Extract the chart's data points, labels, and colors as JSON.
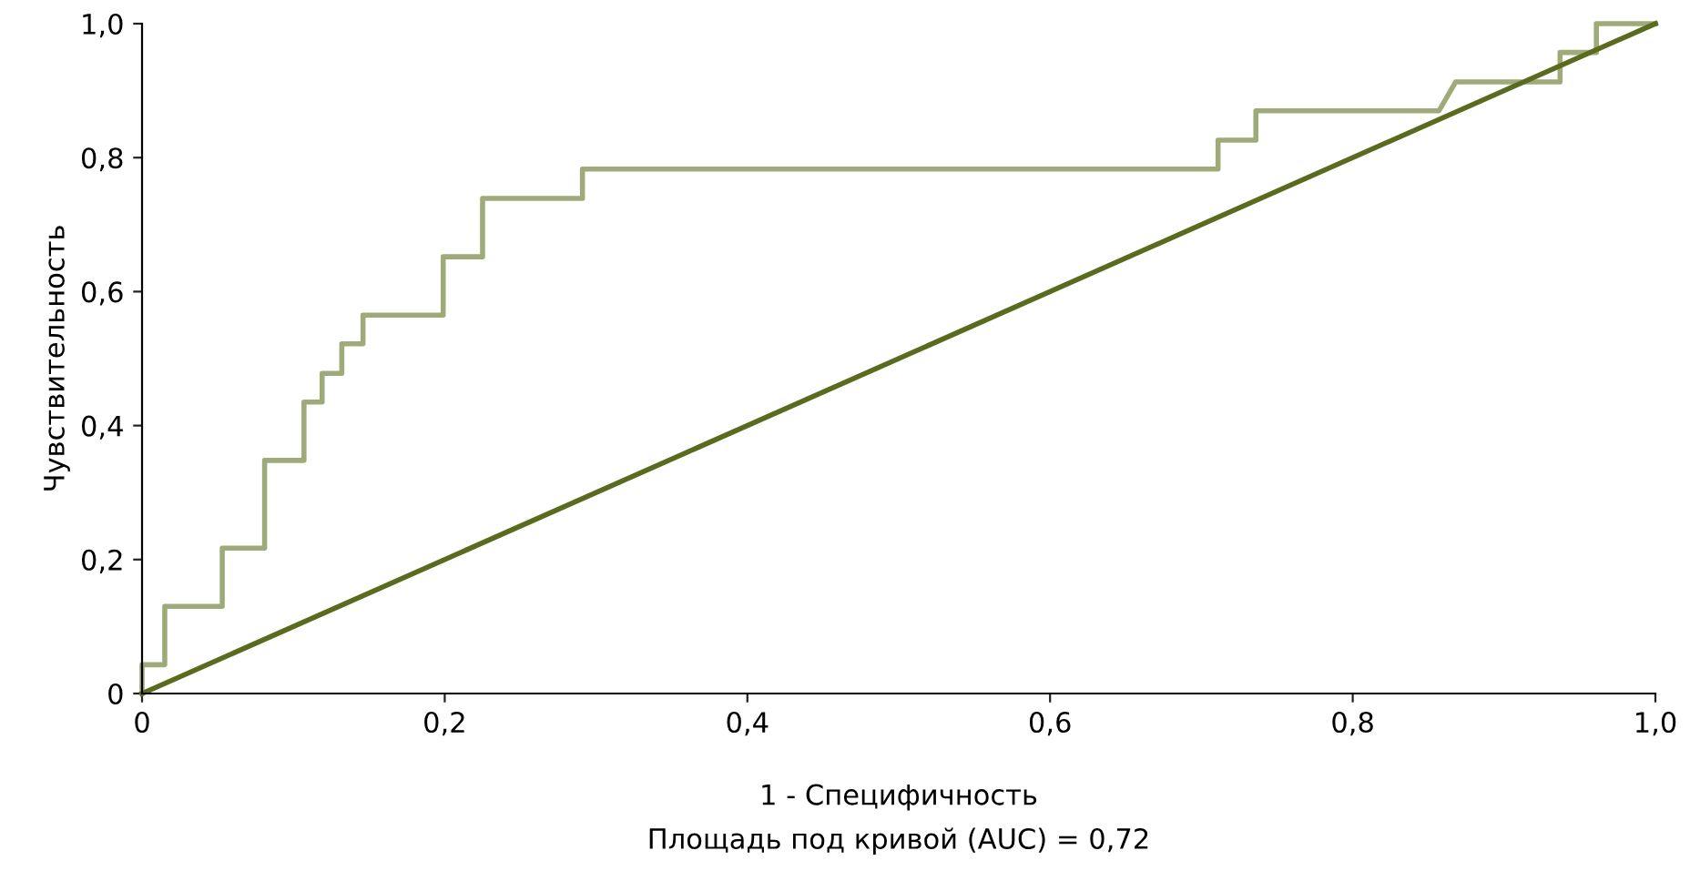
{
  "chart_data": {
    "type": "line",
    "xlabel": "1 - Специфичность",
    "ylabel": "Чувствительность",
    "annotations": [
      "Площадь под кривой (AUC) = 0,72"
    ],
    "series": [
      {
        "color": "#9eaa78",
        "x": [
          0,
          0,
          0.015,
          0.015,
          0.053,
          0.053,
          0.081,
          0.081,
          0.107,
          0.107,
          0.119,
          0.119,
          0.132,
          0.132,
          0.146,
          0.146,
          0.199,
          0.199,
          0.225,
          0.225,
          0.291,
          0.291,
          0.711,
          0.711,
          0.736,
          0.736,
          0.857,
          0.868,
          0.937,
          0.937,
          0.961,
          0.961,
          1.0
        ],
        "values": [
          0,
          0.043,
          0.043,
          0.13,
          0.13,
          0.217,
          0.217,
          0.348,
          0.348,
          0.435,
          0.435,
          0.478,
          0.478,
          0.522,
          0.522,
          0.565,
          0.565,
          0.652,
          0.652,
          0.739,
          0.739,
          0.783,
          0.783,
          0.826,
          0.826,
          0.87,
          0.87,
          0.913,
          0.913,
          0.957,
          0.957,
          1.0,
          1.0
        ]
      },
      {
        "color": "#5a6b1f",
        "x": [
          0,
          1
        ],
        "values": [
          0,
          1
        ]
      }
    ],
    "xlim": [
      0,
      1
    ],
    "ylim": [
      0,
      1
    ],
    "xticks": [
      {
        "value": 0,
        "label": "0"
      },
      {
        "value": 0.2,
        "label": "0,2"
      },
      {
        "value": 0.4,
        "label": "0,4"
      },
      {
        "value": 0.6,
        "label": "0,6"
      },
      {
        "value": 0.8,
        "label": "0,8"
      },
      {
        "value": 1,
        "label": "1,0"
      }
    ],
    "yticks": [
      {
        "value": 0,
        "label": "0"
      },
      {
        "value": 0.2,
        "label": "0,2"
      },
      {
        "value": 0.4,
        "label": "0,4"
      },
      {
        "value": 0.6,
        "label": "0,6"
      },
      {
        "value": 0.8,
        "label": "0,8"
      },
      {
        "value": 1,
        "label": "1,0"
      }
    ],
    "grid": false,
    "legend": false
  }
}
